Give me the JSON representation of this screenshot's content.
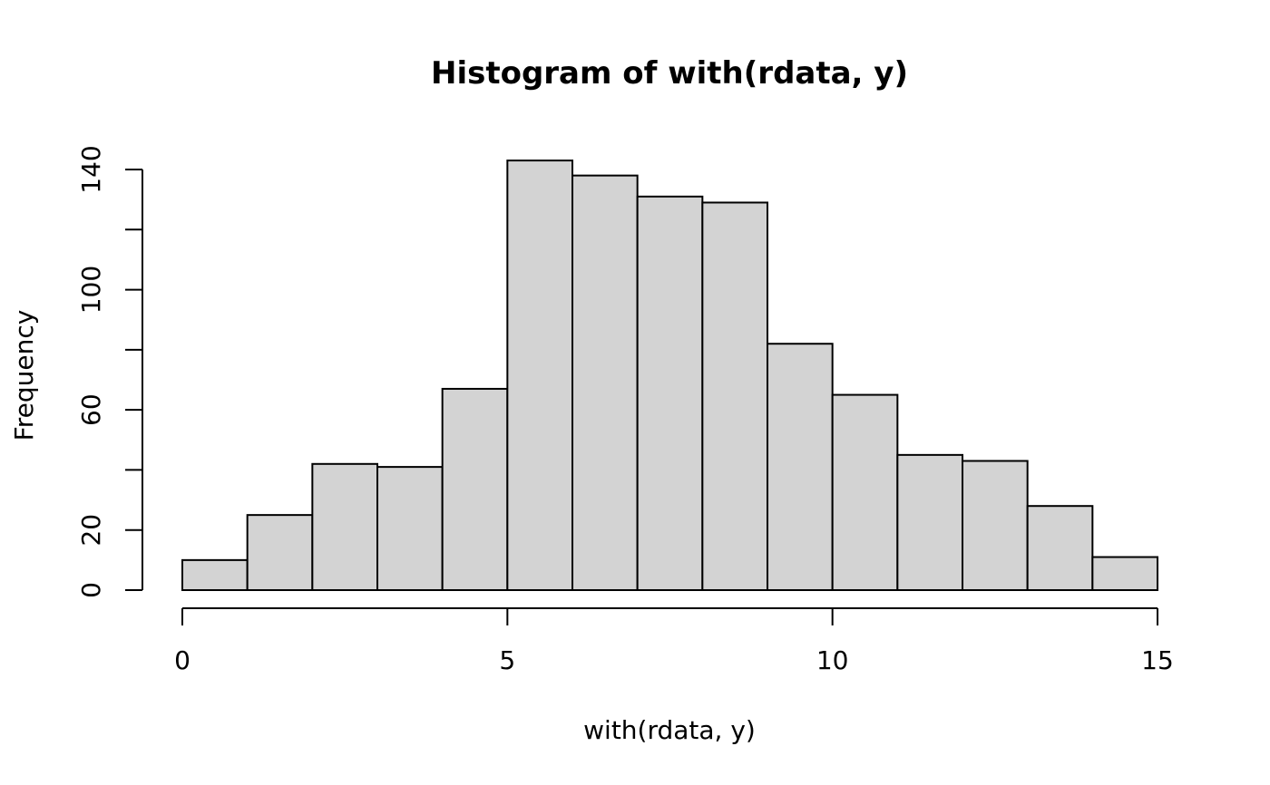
{
  "chart_data": {
    "type": "bar",
    "title": "Histogram of with(rdata, y)",
    "xlabel": "with(rdata, y)",
    "ylabel": "Frequency",
    "bins": [
      {
        "x0": 0,
        "x1": 1,
        "count": 10
      },
      {
        "x0": 1,
        "x1": 2,
        "count": 25
      },
      {
        "x0": 2,
        "x1": 3,
        "count": 42
      },
      {
        "x0": 3,
        "x1": 4,
        "count": 41
      },
      {
        "x0": 4,
        "x1": 5,
        "count": 67
      },
      {
        "x0": 5,
        "x1": 6,
        "count": 143
      },
      {
        "x0": 6,
        "x1": 7,
        "count": 138
      },
      {
        "x0": 7,
        "x1": 8,
        "count": 131
      },
      {
        "x0": 8,
        "x1": 9,
        "count": 129
      },
      {
        "x0": 9,
        "x1": 10,
        "count": 82
      },
      {
        "x0": 10,
        "x1": 11,
        "count": 65
      },
      {
        "x0": 11,
        "x1": 12,
        "count": 45
      },
      {
        "x0": 12,
        "x1": 13,
        "count": 43
      },
      {
        "x0": 13,
        "x1": 14,
        "count": 28
      },
      {
        "x0": 14,
        "x1": 15,
        "count": 11
      }
    ],
    "xlim": [
      0,
      15
    ],
    "ylim": [
      0,
      140
    ],
    "x_ticks": [
      0,
      5,
      10,
      15
    ],
    "y_ticks": [
      0,
      20,
      40,
      60,
      80,
      100,
      120,
      140
    ],
    "y_tick_labels": [
      "0",
      "20",
      "",
      "60",
      "",
      "100",
      "",
      "140"
    ],
    "bar_fill": "#d3d3d3",
    "bar_stroke": "#000000",
    "grid": false
  }
}
